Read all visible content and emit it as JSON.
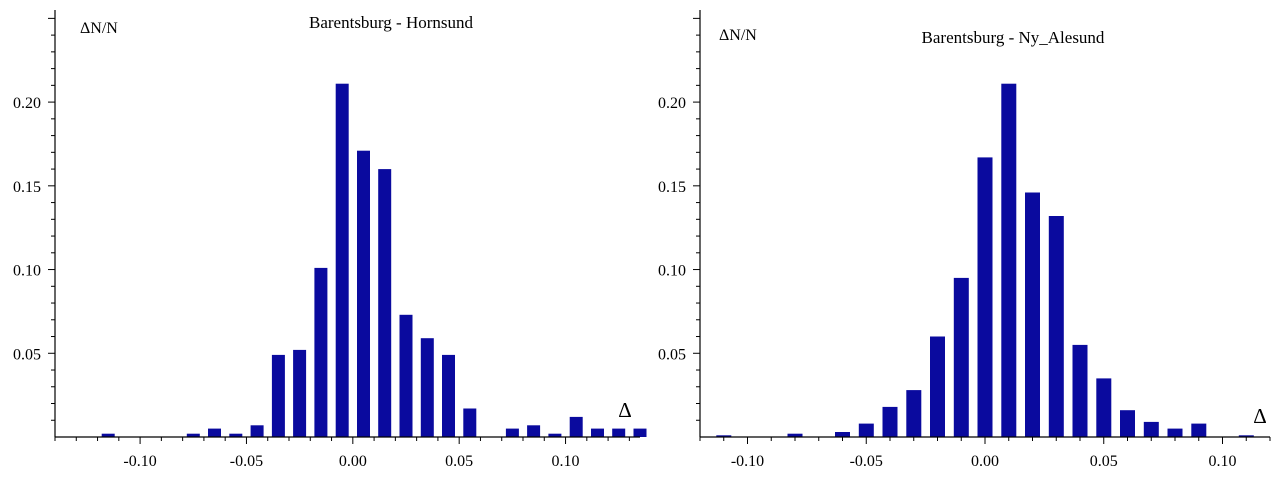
{
  "chart_data": [
    {
      "type": "bar",
      "title": "Barentsburg - Hornsund",
      "ylabel": "ΔN/N",
      "xlabel": "Δ",
      "xlim": [
        -0.14,
        0.135
      ],
      "ylim": [
        0,
        0.255
      ],
      "xticks": [
        "-0.10",
        "-0.05",
        "0.00",
        "0.05",
        "0.10"
      ],
      "xtick_values": [
        -0.1,
        -0.05,
        0.0,
        0.05,
        0.1
      ],
      "yticks": [
        "0.05",
        "0.10",
        "0.15",
        "0.20"
      ],
      "ytick_values": [
        0.05,
        0.1,
        0.15,
        0.2
      ],
      "grid": false,
      "color": "#0a0a9e",
      "x": [
        -0.115,
        -0.075,
        -0.065,
        -0.055,
        -0.045,
        -0.035,
        -0.025,
        -0.015,
        -0.005,
        0.005,
        0.015,
        0.025,
        0.035,
        0.045,
        0.055,
        0.075,
        0.085,
        0.095,
        0.105,
        0.115,
        0.125,
        0.135
      ],
      "values": [
        0.002,
        0.002,
        0.005,
        0.002,
        0.007,
        0.049,
        0.052,
        0.101,
        0.211,
        0.171,
        0.16,
        0.073,
        0.059,
        0.049,
        0.017,
        0.005,
        0.007,
        0.002,
        0.012,
        0.005,
        0.005,
        0.005
      ]
    },
    {
      "type": "bar",
      "title": "Barentsburg - Ny_Alesund",
      "ylabel": "ΔN/N",
      "xlabel": "Δ",
      "xlim": [
        -0.12,
        0.12
      ],
      "ylim": [
        0,
        0.255
      ],
      "xticks": [
        "-0.10",
        "-0.05",
        "0.00",
        "0.05",
        "0.10"
      ],
      "xtick_values": [
        -0.1,
        -0.05,
        0.0,
        0.05,
        0.1
      ],
      "yticks": [
        "0.05",
        "0.10",
        "0.15",
        "0.20"
      ],
      "ytick_values": [
        0.05,
        0.1,
        0.15,
        0.2
      ],
      "grid": false,
      "color": "#0a0a9e",
      "x": [
        -0.11,
        -0.08,
        -0.06,
        -0.05,
        -0.04,
        -0.03,
        -0.02,
        -0.01,
        0.0,
        0.01,
        0.02,
        0.03,
        0.04,
        0.05,
        0.06,
        0.07,
        0.08,
        0.09,
        0.11
      ],
      "values": [
        0.001,
        0.002,
        0.003,
        0.008,
        0.018,
        0.028,
        0.06,
        0.095,
        0.167,
        0.211,
        0.146,
        0.132,
        0.055,
        0.035,
        0.016,
        0.009,
        0.005,
        0.008,
        0.001
      ]
    }
  ]
}
